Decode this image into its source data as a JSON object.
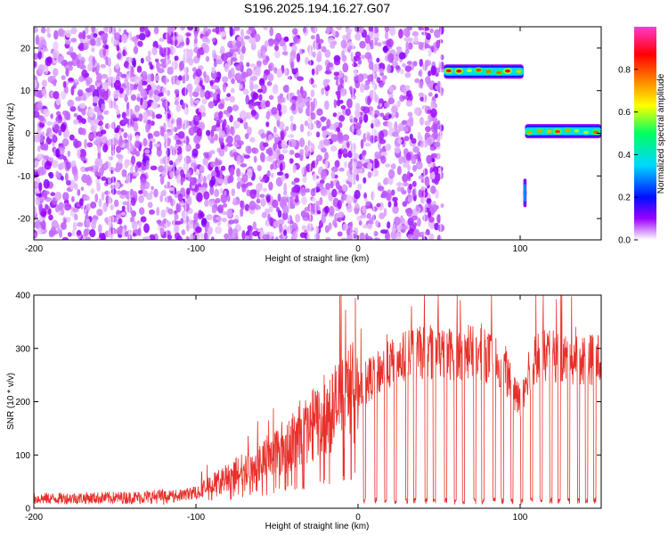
{
  "figure": {
    "title": "S196.2025.194.16.27.G07"
  },
  "chart_data": [
    {
      "type": "heatmap",
      "xlabel": "Height of straight line (km)",
      "ylabel": "Frequency (Hz)",
      "xlim": [
        -200,
        150
      ],
      "ylim": [
        -25,
        25
      ],
      "xticks": [
        -200,
        -100,
        0,
        100
      ],
      "yticks": [
        -20,
        -10,
        0,
        10,
        20
      ],
      "colorbar": {
        "label": "Normalized spectral amplitude",
        "range": [
          0,
          1
        ],
        "ticks": [
          "0.0",
          "0.2",
          "0.4",
          "0.6",
          "0.8"
        ],
        "colors": [
          "#ffffff",
          "#9a00ff",
          "#0010ff",
          "#00d8ff",
          "#00ff60",
          "#ffff00",
          "#ff8000",
          "#ff0000",
          "#ff3ad0"
        ]
      },
      "noise_region": {
        "x_range": [
          -200,
          52
        ],
        "y_range": [
          -25,
          25
        ],
        "typical_amplitude": 0.1
      },
      "features": [
        {
          "name": "",
          "x_range": [
            53,
            102
          ],
          "frequency_hz": 14.5,
          "peak_amplitude": 0.9
        },
        {
          "name": "",
          "x_range": [
            103,
            150
          ],
          "frequency_hz": 0.5,
          "peak_amplitude": 0.9
        },
        {
          "name": "",
          "x_range": [
            102,
            104
          ],
          "frequency_hz": -14,
          "peak_amplitude": 0.3
        }
      ]
    },
    {
      "type": "line",
      "xlabel": "Height of straight line (km)",
      "ylabel": "SNR (10 * v/v)",
      "xlim": [
        -200,
        150
      ],
      "ylim": [
        0,
        400
      ],
      "xticks": [
        -200,
        -100,
        0,
        100
      ],
      "yticks": [
        0,
        100,
        200,
        300,
        400
      ],
      "line_color": "#e8302a",
      "envelope": [
        [
          -200,
          18
        ],
        [
          -140,
          20
        ],
        [
          -110,
          24
        ],
        [
          -100,
          30
        ],
        [
          -90,
          45
        ],
        [
          -80,
          60
        ],
        [
          -70,
          75
        ],
        [
          -60,
          90
        ],
        [
          -50,
          110
        ],
        [
          -40,
          125
        ],
        [
          -30,
          150
        ],
        [
          -20,
          175
        ],
        [
          -10,
          200
        ],
        [
          0,
          225
        ],
        [
          10,
          250
        ],
        [
          20,
          270
        ],
        [
          30,
          285
        ],
        [
          40,
          292
        ],
        [
          50,
          292
        ],
        [
          60,
          290
        ],
        [
          70,
          292
        ],
        [
          80,
          285
        ],
        [
          90,
          270
        ],
        [
          95,
          220
        ],
        [
          100,
          200
        ],
        [
          105,
          260
        ],
        [
          110,
          285
        ],
        [
          120,
          285
        ],
        [
          130,
          280
        ],
        [
          150,
          280
        ]
      ],
      "dropouts_x": [
        4,
        11,
        17,
        23,
        30,
        35,
        42,
        47,
        54,
        60,
        65,
        72,
        77,
        84,
        89,
        95,
        101,
        107,
        113,
        119,
        124,
        130,
        136,
        141,
        146
      ]
    }
  ]
}
